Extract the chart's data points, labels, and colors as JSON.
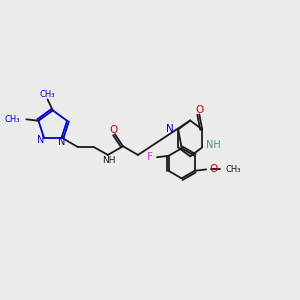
{
  "background_color": "#ebebeb",
  "figsize": [
    3.0,
    3.0
  ],
  "dpi": 100,
  "colors": {
    "bond": "#1a1a1a",
    "blue": "#0000cc",
    "red": "#cc0000",
    "teal": "#4a9090",
    "pink": "#cc44cc",
    "gray": "#555555"
  },
  "layout": {
    "xlim": [
      0,
      10
    ],
    "ylim": [
      0,
      10
    ]
  }
}
